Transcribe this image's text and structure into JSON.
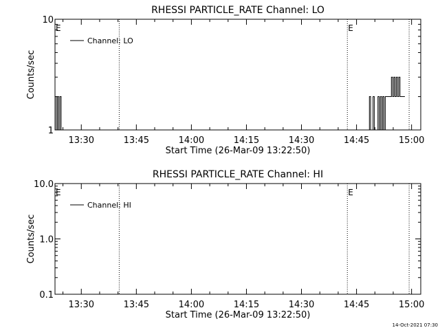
{
  "footer_timestamp": "14-Oct-2021 07:30",
  "chart_data": [
    {
      "type": "line",
      "title": "RHESSI PARTICLE_RATE Channel: LO",
      "xlabel": "Start Time (26-Mar-09 13:22:50)",
      "ylabel": "Counts/sec",
      "yscale": "log",
      "ylim": [
        1,
        10
      ],
      "ytick_labels": [
        "1",
        "10"
      ],
      "xlim": [
        "13:22:50",
        "15:02:30"
      ],
      "xtick_labels": [
        "13:30",
        "13:45",
        "14:00",
        "14:15",
        "14:30",
        "14:45",
        "15:00"
      ],
      "legend": {
        "label": "Channel: LO",
        "placement": "top-left"
      },
      "vlines": [
        {
          "x": "13:40:20",
          "label": ""
        },
        {
          "x": "14:42:30",
          "label": "E"
        },
        {
          "x": "14:59:20",
          "label": ""
        }
      ],
      "left_marker": "E",
      "series": [
        {
          "name": "Channel: LO",
          "x": [
            "13:22:50",
            "13:23:10",
            "13:23:30",
            "13:23:50",
            "13:24:10",
            "13:24:30",
            "13:24:50",
            "14:48:10",
            "14:48:30",
            "14:48:50",
            "14:49:10",
            "14:49:30",
            "14:49:50",
            "14:50:10",
            "14:50:30",
            "14:50:50",
            "14:51:10",
            "14:51:30",
            "14:51:50",
            "14:52:10",
            "14:52:30",
            "14:52:50",
            "14:53:10",
            "14:53:30",
            "14:53:50",
            "14:54:10",
            "14:54:30",
            "14:54:50",
            "14:55:10",
            "14:55:30",
            "14:55:50",
            "14:56:10",
            "14:56:30",
            "14:56:50",
            "14:57:10",
            "14:57:30",
            "14:57:50"
          ],
          "y": [
            2,
            1,
            2,
            1,
            2,
            1,
            1,
            1,
            2,
            1,
            1,
            2,
            1,
            1,
            1,
            2,
            1,
            2,
            1,
            2,
            1,
            2,
            2,
            2,
            2,
            2,
            3,
            2,
            3,
            2,
            3,
            2,
            3,
            2,
            2,
            2,
            2
          ]
        }
      ]
    },
    {
      "type": "line",
      "title": "RHESSI PARTICLE_RATE Channel: HI",
      "xlabel": "Start Time (26-Mar-09 13:22:50)",
      "ylabel": "Counts/sec",
      "yscale": "log",
      "ylim": [
        0.1,
        10
      ],
      "ytick_labels": [
        "0.1",
        "1.0",
        "10.0"
      ],
      "xlim": [
        "13:22:50",
        "15:02:30"
      ],
      "xtick_labels": [
        "13:30",
        "13:45",
        "14:00",
        "14:15",
        "14:30",
        "14:45",
        "15:00"
      ],
      "legend": {
        "label": "Channel: HI",
        "placement": "top-left"
      },
      "vlines": [
        {
          "x": "13:40:20",
          "label": ""
        },
        {
          "x": "14:42:30",
          "label": "E"
        },
        {
          "x": "14:59:20",
          "label": ""
        }
      ],
      "left_marker": "E",
      "series": [
        {
          "name": "Channel: HI",
          "x": [],
          "y": []
        }
      ]
    }
  ]
}
